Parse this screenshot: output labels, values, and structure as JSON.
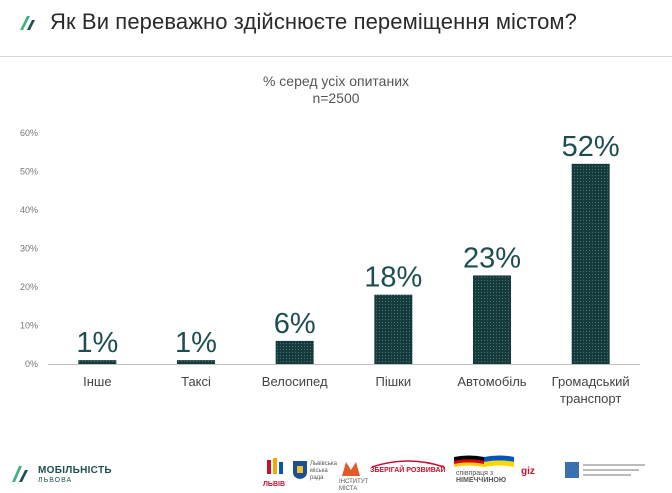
{
  "header": {
    "title": "Як Ви переважно здійснюєте переміщення містом?"
  },
  "chart_subtitle": {
    "line1": "% серед усіх опитаних",
    "line2": "n=2500"
  },
  "chart_data": {
    "type": "bar",
    "categories": [
      [
        "Інше"
      ],
      [
        "Таксі"
      ],
      [
        "Велосипед"
      ],
      [
        "Пішки"
      ],
      [
        "Автомобіль"
      ],
      [
        "Громадський",
        "транспорт"
      ]
    ],
    "values": [
      1,
      1,
      6,
      18,
      23,
      52
    ],
    "data_labels": [
      "1%",
      "1%",
      "6%",
      "18%",
      "23%",
      "52%"
    ],
    "yticks": [
      "0%",
      "10%",
      "20%",
      "30%",
      "40%",
      "50%",
      "60%"
    ],
    "ylim": [
      0,
      60
    ],
    "bar_color": "#163b3c",
    "label_color": "#1e4f50",
    "grid": false
  },
  "footer": {
    "brand_name": "МОБІЛЬНІСТЬ",
    "brand_sub": "ЛЬВОВА",
    "partners": {
      "lviv": "ЛЬВІВ",
      "rada": [
        "Львівська",
        "міська",
        "рада"
      ],
      "instytut": [
        "ІНСТИТУТ",
        "МІСТА"
      ],
      "zberihai": "ЗБЕРІГАЙ РОЗВИВАЙ",
      "cooperation": [
        "співпраця з",
        "НІМЕЧЧИНОЮ"
      ],
      "giz": "giz"
    }
  },
  "colors": {
    "brand_teal": "#1e4f50",
    "logo_green": "#3fb37f"
  }
}
